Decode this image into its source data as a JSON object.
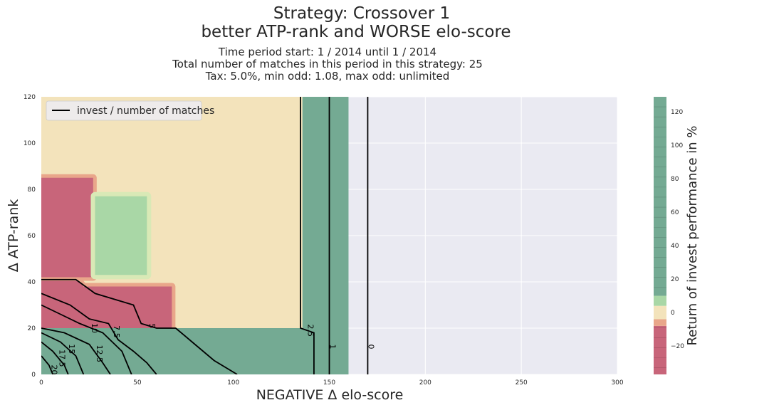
{
  "chart_data": {
    "type": "contour",
    "title": "Strategy: Crossover 1",
    "subtitle": "better ATP-rank and WORSE elo-score",
    "info_lines": [
      "Time period start: 1 / 2014 until 1 / 2014",
      "Total number of matches in this period in this strategy: 25",
      "Tax: 5.0%, min odd: 1.08, max odd: unlimited"
    ],
    "xlabel": "NEGATIVE Δ elo-score",
    "ylabel": "Δ ATP-rank",
    "xlim": [
      0,
      300
    ],
    "ylim": [
      0,
      120
    ],
    "xticks": [
      "0",
      "50",
      "100",
      "150",
      "200",
      "250",
      "300"
    ],
    "yticks": [
      "0",
      "20",
      "40",
      "60",
      "80",
      "100",
      "120"
    ],
    "grid": true,
    "legend": {
      "label": "invest / number of matches",
      "position": "top-left"
    },
    "colorbar": {
      "label": "Return of invest performance in %",
      "range": [
        -37,
        129
      ],
      "ticks": [
        "−20",
        "0",
        "20",
        "40",
        "60",
        "80",
        "100",
        "120"
      ],
      "tick_values": [
        -20,
        0,
        20,
        40,
        60,
        80,
        100,
        120
      ]
    },
    "colors": {
      "background": "#eaeaf2",
      "strong_negative": "#c8657a",
      "negative": "#e9a68a",
      "neutral": "#f3e3bb",
      "slightly_positive": "#a9d7a6",
      "strong_positive": "#74aa93",
      "contour_line": "#000000"
    },
    "contour_labels": [
      "2.5",
      "1",
      "0",
      "5",
      "7.5",
      "10",
      "12.5",
      "15",
      "17.5",
      "20"
    ],
    "regions": [
      {
        "name": "neutral",
        "level": 0,
        "polygon": [
          [
            0,
            20
          ],
          [
            136,
            20
          ],
          [
            136,
            120
          ],
          [
            0,
            120
          ]
        ]
      },
      {
        "name": "strong-negative",
        "level": -30,
        "polygon": [
          [
            0,
            20
          ],
          [
            68,
            20
          ],
          [
            68,
            38
          ],
          [
            22,
            38
          ],
          [
            18,
            42
          ],
          [
            0,
            42
          ]
        ]
      },
      {
        "name": "strong-negative",
        "level": -30,
        "polygon": [
          [
            0,
            42
          ],
          [
            27,
            42
          ],
          [
            27,
            85
          ],
          [
            0,
            85
          ]
        ]
      },
      {
        "name": "slightly-positive",
        "level": 8,
        "polygon": [
          [
            28,
            43
          ],
          [
            55,
            43
          ],
          [
            55,
            77
          ],
          [
            28,
            77
          ]
        ]
      },
      {
        "name": "strong-positive",
        "level": 120,
        "polygon": [
          [
            136,
            20
          ],
          [
            160,
            20
          ],
          [
            160,
            120
          ],
          [
            136,
            120
          ]
        ]
      },
      {
        "name": "strong-positive",
        "level": 120,
        "polygon": [
          [
            0,
            0
          ],
          [
            160,
            0
          ],
          [
            160,
            20
          ],
          [
            0,
            20
          ]
        ]
      }
    ],
    "contour_lines": [
      {
        "label": "0",
        "points": [
          [
            170,
            0
          ],
          [
            170,
            120
          ]
        ]
      },
      {
        "label": "1",
        "points": [
          [
            150,
            0
          ],
          [
            150,
            120
          ]
        ]
      },
      {
        "label": "2.5",
        "points": [
          [
            135,
            120
          ],
          [
            135,
            20
          ],
          [
            142,
            18
          ],
          [
            142,
            0
          ]
        ]
      },
      {
        "label": "5",
        "points": [
          [
            0,
            41
          ],
          [
            18,
            41
          ],
          [
            28,
            35
          ],
          [
            48,
            30
          ],
          [
            52,
            22
          ],
          [
            60,
            20
          ],
          [
            70,
            20
          ],
          [
            80,
            13
          ],
          [
            90,
            6
          ],
          [
            102,
            0
          ]
        ]
      },
      {
        "label": "7.5",
        "points": [
          [
            0,
            35
          ],
          [
            15,
            30
          ],
          [
            25,
            24
          ],
          [
            35,
            22
          ],
          [
            40,
            15
          ],
          [
            48,
            10
          ],
          [
            55,
            5
          ],
          [
            60,
            0
          ]
        ]
      },
      {
        "label": "10",
        "points": [
          [
            0,
            30
          ],
          [
            10,
            26
          ],
          [
            20,
            22
          ],
          [
            32,
            18
          ],
          [
            42,
            10
          ],
          [
            47,
            0
          ]
        ]
      },
      {
        "label": "12.5",
        "points": [
          [
            0,
            20
          ],
          [
            12,
            18
          ],
          [
            25,
            13
          ],
          [
            32,
            5
          ],
          [
            36,
            0
          ]
        ]
      },
      {
        "label": "15",
        "points": [
          [
            0,
            18
          ],
          [
            10,
            14
          ],
          [
            18,
            8
          ],
          [
            22,
            0
          ]
        ]
      },
      {
        "label": "17.5",
        "points": [
          [
            0,
            14
          ],
          [
            6,
            10
          ],
          [
            12,
            4
          ],
          [
            14,
            0
          ]
        ]
      },
      {
        "label": "20",
        "points": [
          [
            0,
            8
          ],
          [
            4,
            4
          ],
          [
            6,
            0
          ]
        ]
      }
    ]
  }
}
